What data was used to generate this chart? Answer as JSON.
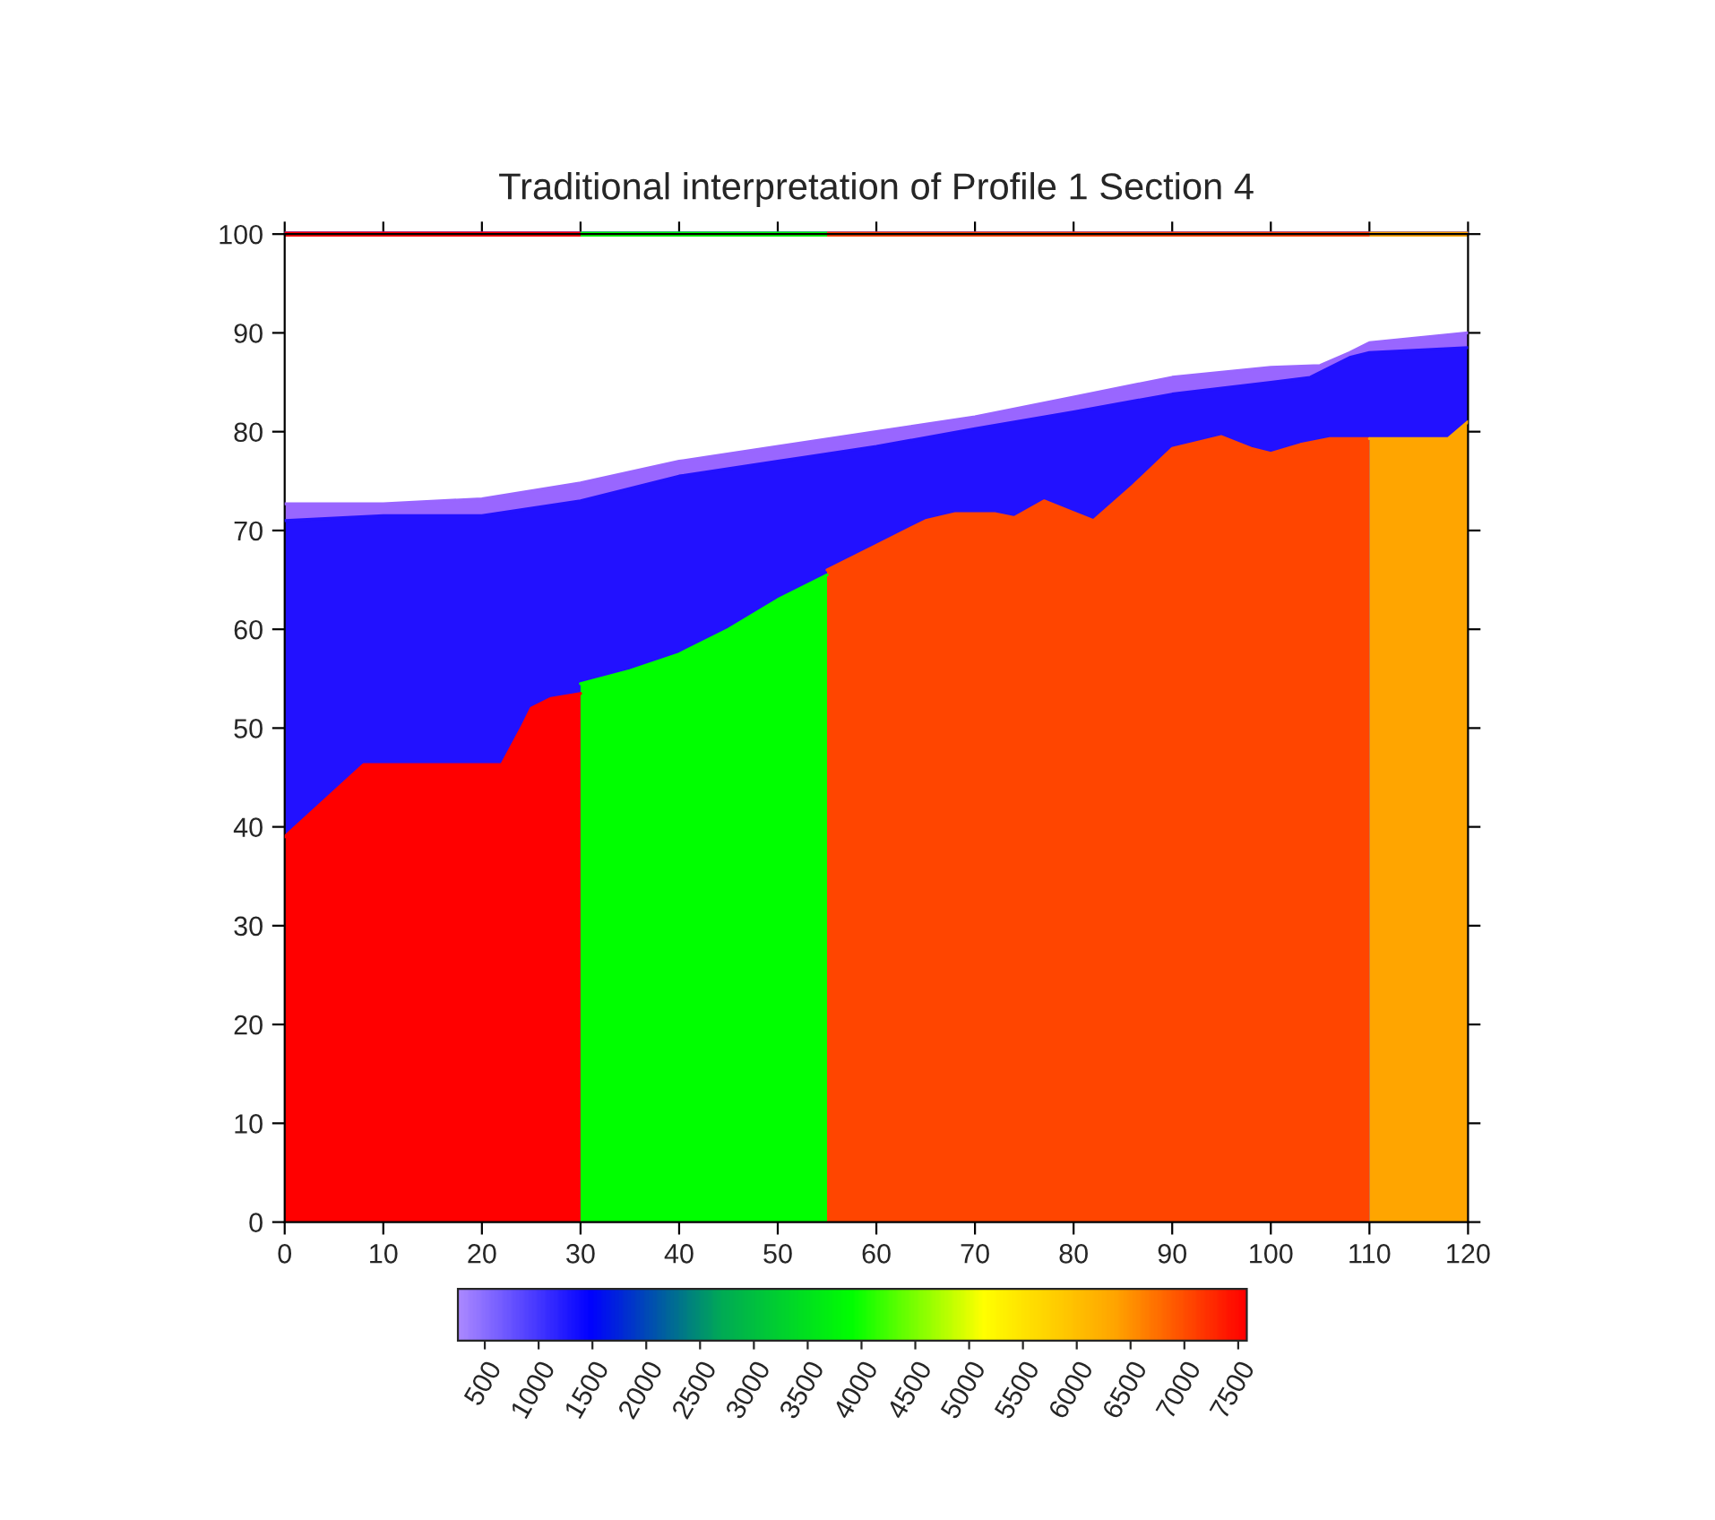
{
  "chart_data": {
    "type": "area",
    "title": "Traditional interpretation of Profile 1 Section 4",
    "xlim": [
      0,
      120
    ],
    "ylim": [
      0,
      100
    ],
    "xticks": [
      0,
      10,
      20,
      30,
      40,
      50,
      60,
      70,
      80,
      90,
      100,
      110,
      120
    ],
    "yticks": [
      0,
      10,
      20,
      30,
      40,
      50,
      60,
      70,
      80,
      90,
      100
    ],
    "grid": false,
    "legend": false,
    "clim": [
      250,
      7580
    ],
    "cticks": [
      500,
      1000,
      1500,
      2000,
      2500,
      3000,
      3500,
      4000,
      4500,
      5000,
      5500,
      6000,
      6500,
      7000,
      7500
    ],
    "series": [
      {
        "color": "#9966ff",
        "x": [
          0,
          10,
          20,
          30,
          40,
          50,
          60,
          70,
          80,
          90,
          100,
          105,
          108,
          110,
          115,
          120
        ],
        "values": [
          72.7,
          72.7,
          73.2,
          74.8,
          77,
          78.5,
          80,
          81.5,
          83.5,
          85.5,
          86.5,
          86.7,
          88,
          89,
          89.5,
          90
        ]
      },
      {
        "color": "#2211ff",
        "x": [
          0,
          10,
          20,
          30,
          40,
          50,
          60,
          70,
          80,
          90,
          100,
          104,
          106,
          108,
          110,
          120
        ],
        "values": [
          71,
          71.5,
          71.5,
          73,
          75.5,
          77,
          78.5,
          80.3,
          82,
          83.8,
          85,
          85.5,
          86.5,
          87.5,
          88,
          88.5
        ]
      },
      {
        "color": "#ff0000",
        "x": [
          0,
          8,
          22,
          24,
          25,
          27,
          30
        ],
        "values": [
          39,
          46.3,
          46.3,
          50,
          52,
          53,
          53.5
        ]
      },
      {
        "color": "#00ff00",
        "x": [
          30,
          35,
          40,
          45,
          50,
          55
        ],
        "values": [
          54.5,
          55.8,
          57.5,
          60,
          63,
          65.5
        ]
      },
      {
        "color": "#ff4500",
        "x": [
          55,
          60,
          65,
          68,
          72,
          74,
          77,
          80,
          82,
          86,
          90,
          95,
          98,
          100,
          103,
          106,
          110
        ],
        "values": [
          66,
          68.5,
          71,
          71.7,
          71.7,
          71.3,
          73,
          71.8,
          71,
          74.5,
          78.3,
          79.5,
          78.3,
          77.8,
          78.7,
          79.3,
          79.3
        ]
      },
      {
        "color": "#ffa500",
        "x": [
          110,
          118,
          120
        ],
        "values": [
          79.3,
          79.3,
          81
        ]
      }
    ]
  }
}
